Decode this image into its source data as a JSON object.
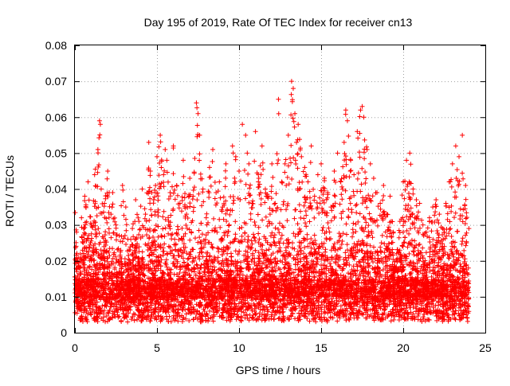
{
  "chart_data": {
    "type": "scatter",
    "title": "Day 195 of 2019, Rate Of TEC Index for receiver cn13",
    "xlabel": "GPS time / hours",
    "ylabel": "ROTI / TECUs",
    "xlim": [
      0,
      25
    ],
    "ylim": [
      0,
      0.08
    ],
    "x_ticks": [
      0,
      5,
      10,
      15,
      20,
      25
    ],
    "x_tick_labels": [
      "0",
      "5",
      "10",
      "15",
      "20",
      "25"
    ],
    "y_ticks": [
      0,
      0.01,
      0.02,
      0.03,
      0.04,
      0.05,
      0.06,
      0.07,
      0.08
    ],
    "y_tick_labels": [
      "0",
      "0.01",
      "0.02",
      "0.03",
      "0.04",
      "0.05",
      "0.06",
      "0.07",
      "0.08"
    ],
    "grid": true,
    "marker": "+",
    "marker_color": "#ff0000",
    "series": [
      {
        "name": "ROTI",
        "points_note": "dense scatter; representative sample of observed values",
        "x": [
          0.1,
          0.2,
          0.3,
          0.4,
          0.5,
          0.6,
          0.8,
          1.0,
          1.2,
          1.4,
          1.5,
          1.55,
          1.6,
          1.8,
          2.0,
          2.2,
          2.3,
          2.5,
          2.7,
          2.9,
          3.1,
          3.3,
          3.5,
          3.7,
          3.9,
          4.1,
          4.3,
          4.5,
          4.6,
          4.8,
          5.0,
          5.2,
          5.4,
          5.5,
          5.6,
          5.8,
          6.0,
          6.2,
          6.4,
          6.6,
          6.8,
          7.0,
          7.2,
          7.4,
          7.5,
          7.6,
          7.8,
          8.0,
          8.2,
          8.4,
          8.6,
          8.8,
          9.0,
          9.2,
          9.4,
          9.6,
          9.8,
          10.0,
          10.2,
          10.4,
          10.5,
          10.6,
          10.8,
          11.0,
          11.2,
          11.4,
          11.6,
          11.8,
          12.0,
          12.2,
          12.4,
          12.6,
          12.8,
          13.0,
          13.2,
          13.3,
          13.4,
          13.5,
          13.6,
          13.8,
          14.0,
          14.2,
          14.4,
          14.6,
          14.8,
          15.0,
          15.2,
          15.4,
          15.6,
          15.8,
          16.0,
          16.2,
          16.4,
          16.5,
          16.6,
          16.8,
          17.0,
          17.2,
          17.4,
          17.5,
          17.6,
          17.8,
          18.0,
          18.2,
          18.4,
          18.6,
          18.8,
          19.0,
          19.2,
          19.4,
          19.6,
          19.8,
          20.0,
          20.2,
          20.4,
          20.6,
          20.8,
          21.0,
          21.2,
          21.4,
          21.6,
          21.8,
          22.0,
          22.2,
          22.4,
          22.6,
          22.8,
          23.0,
          23.2,
          23.4,
          23.6,
          23.8,
          24.0
        ],
        "y": [
          0.028,
          0.021,
          0.018,
          0.032,
          0.025,
          0.038,
          0.042,
          0.03,
          0.044,
          0.051,
          0.059,
          0.058,
          0.04,
          0.036,
          0.045,
          0.033,
          0.039,
          0.03,
          0.027,
          0.041,
          0.035,
          0.023,
          0.029,
          0.037,
          0.031,
          0.04,
          0.033,
          0.053,
          0.045,
          0.037,
          0.049,
          0.055,
          0.044,
          0.051,
          0.048,
          0.039,
          0.052,
          0.041,
          0.036,
          0.048,
          0.033,
          0.043,
          0.038,
          0.064,
          0.061,
          0.055,
          0.04,
          0.032,
          0.046,
          0.051,
          0.039,
          0.042,
          0.035,
          0.047,
          0.03,
          0.052,
          0.049,
          0.045,
          0.058,
          0.055,
          0.05,
          0.047,
          0.036,
          0.056,
          0.043,
          0.052,
          0.04,
          0.038,
          0.047,
          0.036,
          0.065,
          0.042,
          0.047,
          0.055,
          0.07,
          0.068,
          0.061,
          0.053,
          0.058,
          0.049,
          0.046,
          0.042,
          0.052,
          0.038,
          0.044,
          0.047,
          0.043,
          0.039,
          0.035,
          0.045,
          0.05,
          0.042,
          0.053,
          0.062,
          0.059,
          0.048,
          0.044,
          0.056,
          0.062,
          0.063,
          0.06,
          0.051,
          0.047,
          0.043,
          0.039,
          0.036,
          0.041,
          0.033,
          0.038,
          0.028,
          0.022,
          0.031,
          0.042,
          0.048,
          0.05,
          0.04,
          0.037,
          0.036,
          0.03,
          0.028,
          0.032,
          0.035,
          0.037,
          0.033,
          0.029,
          0.036,
          0.042,
          0.047,
          0.052,
          0.049,
          0.055,
          0.041,
          0.029
        ],
        "floor_band": [
          0.003,
          0.015
        ],
        "x_range": [
          0,
          24
        ]
      }
    ]
  }
}
